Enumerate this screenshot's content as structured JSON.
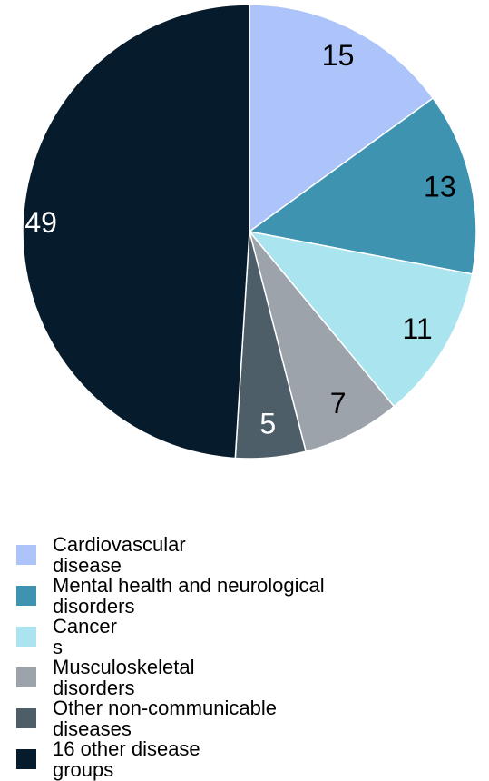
{
  "chart_data": {
    "type": "pie",
    "categories": [
      "Cardiovascular disease",
      "Mental health and neurological disorders",
      "Cancers",
      "Musculoskeletal disorders",
      "Other non-communicable diseases",
      "16 other disease groups"
    ],
    "values": [
      15,
      13,
      11,
      7,
      5,
      49
    ],
    "colors": [
      "#adc4fa",
      "#3d93b0",
      "#a9e4ef",
      "#9ca3aa",
      "#4d5e69",
      "#061b2b"
    ],
    "legend": "bottom"
  }
}
